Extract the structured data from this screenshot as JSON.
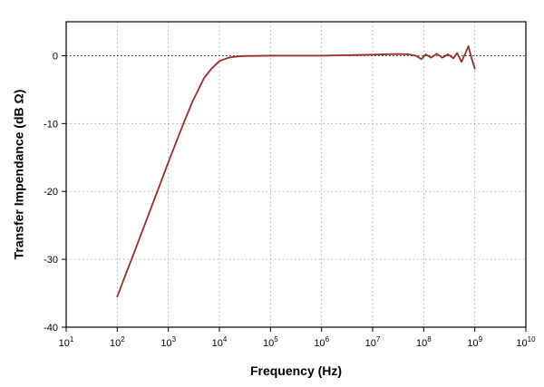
{
  "chart_data": {
    "type": "line",
    "title": "",
    "xlabel": "Frequency (Hz)",
    "ylabel": "Transfer Impendance (dB Ω)",
    "xscale": "log",
    "xlim": [
      10,
      10000000000
    ],
    "ylim": [
      -40,
      5
    ],
    "x_ticks": [
      {
        "value": 10,
        "base": "10",
        "exp": "1"
      },
      {
        "value": 100,
        "base": "10",
        "exp": "2"
      },
      {
        "value": 1000,
        "base": "10",
        "exp": "3"
      },
      {
        "value": 10000,
        "base": "10",
        "exp": "4"
      },
      {
        "value": 100000,
        "base": "10",
        "exp": "5"
      },
      {
        "value": 1000000,
        "base": "10",
        "exp": "6"
      },
      {
        "value": 10000000,
        "base": "10",
        "exp": "7"
      },
      {
        "value": 100000000,
        "base": "10",
        "exp": "8"
      },
      {
        "value": 1000000000,
        "base": "10",
        "exp": "9"
      },
      {
        "value": 10000000000,
        "base": "10",
        "exp": "10"
      }
    ],
    "y_ticks": [
      {
        "value": 0,
        "label": "0"
      },
      {
        "value": -10,
        "label": "-10"
      },
      {
        "value": -20,
        "label": "-20"
      },
      {
        "value": -30,
        "label": "-30"
      },
      {
        "value": -40,
        "label": "-40"
      }
    ],
    "grid": true,
    "series": [
      {
        "color": "#9b2d2a",
        "points": [
          [
            100,
            -35.5
          ],
          [
            150,
            -32.0
          ],
          [
            200,
            -29.6
          ],
          [
            300,
            -26.1
          ],
          [
            500,
            -21.7
          ],
          [
            700,
            -18.8
          ],
          [
            1000,
            -15.7
          ],
          [
            1500,
            -12.3
          ],
          [
            2000,
            -9.9
          ],
          [
            3000,
            -6.7
          ],
          [
            5000,
            -3.3
          ],
          [
            7000,
            -1.9
          ],
          [
            10000,
            -0.8
          ],
          [
            15000,
            -0.3
          ],
          [
            20000,
            -0.15
          ],
          [
            30000,
            -0.05
          ],
          [
            100000,
            0.0
          ],
          [
            1000000,
            0.0
          ],
          [
            10000000,
            0.15
          ],
          [
            30000000,
            0.25
          ],
          [
            50000000,
            0.2
          ],
          [
            70000000,
            0.0
          ],
          [
            90000000,
            -0.5
          ],
          [
            110000000,
            0.2
          ],
          [
            140000000,
            -0.3
          ],
          [
            180000000,
            0.3
          ],
          [
            230000000,
            -0.3
          ],
          [
            300000000,
            0.2
          ],
          [
            380000000,
            -0.4
          ],
          [
            450000000,
            0.4
          ],
          [
            550000000,
            -0.9
          ],
          [
            650000000,
            0.3
          ],
          [
            750000000,
            1.4
          ],
          [
            850000000,
            -0.2
          ],
          [
            1000000000,
            -1.9
          ]
        ]
      }
    ]
  }
}
